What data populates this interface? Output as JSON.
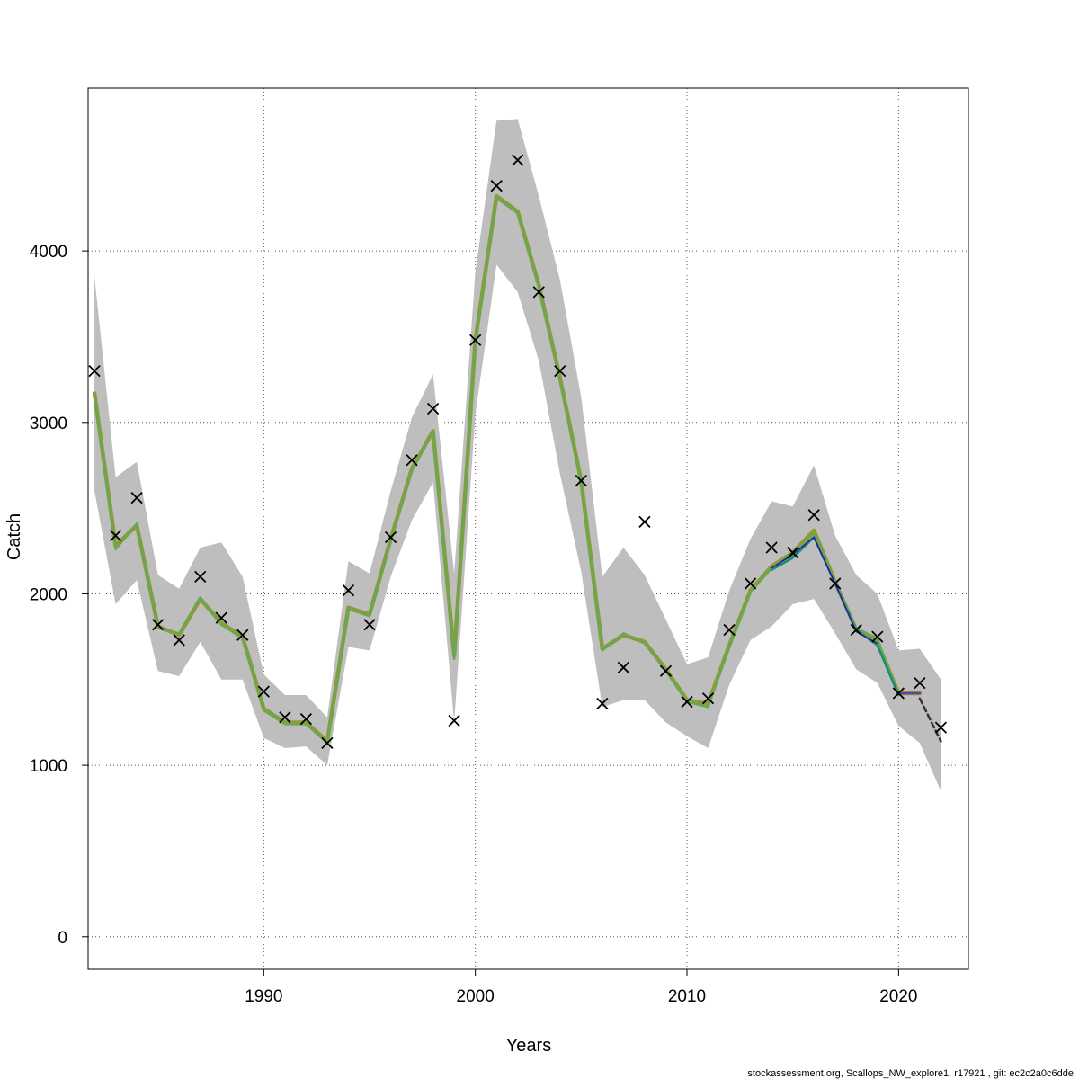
{
  "chart_data": {
    "type": "line",
    "xlabel": "Years",
    "ylabel": "Catch",
    "xlim": [
      1981.7,
      2023.3
    ],
    "ylim": [
      -190,
      4950
    ],
    "x_ticks": [
      1990,
      2000,
      2010,
      2020
    ],
    "y_ticks": [
      0,
      1000,
      2000,
      3000,
      4000
    ],
    "grid": true,
    "footer": "stockassessment.org, Scallops_NW_explore1, r17921 , git: ec2c2a0c6dde",
    "colors": {
      "band": "#bebebe",
      "observed": "#000000",
      "fit_green": "#6aa84f",
      "fit_olive": "#8e9a3a",
      "retro_teal": "#1a8a7a",
      "retro_lightblue": "#6fb7e8",
      "retro_navy": "#1f1f8a",
      "retro_purple": "#6a3d9a",
      "forecast": "#333333"
    },
    "years": [
      1982,
      1983,
      1984,
      1985,
      1986,
      1987,
      1988,
      1989,
      1990,
      1991,
      1992,
      1993,
      1994,
      1995,
      1996,
      1997,
      1998,
      1999,
      2000,
      2001,
      2002,
      2003,
      2004,
      2005,
      2006,
      2007,
      2008,
      2009,
      2010,
      2011,
      2012,
      2013,
      2014,
      2015,
      2016,
      2017,
      2018,
      2019,
      2020,
      2021,
      2022
    ],
    "observed": [
      3300,
      2340,
      2560,
      1820,
      1730,
      2100,
      1860,
      1760,
      1430,
      1280,
      1270,
      1130,
      2020,
      1820,
      2330,
      2780,
      3080,
      1260,
      3480,
      4380,
      4530,
      3760,
      3300,
      2660,
      1360,
      1570,
      2420,
      1550,
      1370,
      1390,
      1790,
      2060,
      2270,
      2240,
      2460,
      2060,
      1790,
      1750,
      1420,
      1480,
      1220
    ],
    "band_upper": [
      3850,
      2680,
      2770,
      2110,
      2030,
      2270,
      2300,
      2100,
      1530,
      1410,
      1410,
      1280,
      2190,
      2120,
      2600,
      3030,
      3280,
      2120,
      3880,
      4760,
      4770,
      4320,
      3830,
      3150,
      2100,
      2270,
      2110,
      1850,
      1590,
      1630,
      2020,
      2320,
      2540,
      2510,
      2750,
      2340,
      2110,
      2000,
      1670,
      1680,
      1500
    ],
    "band_lower": [
      2600,
      1940,
      2080,
      1550,
      1520,
      1720,
      1500,
      1500,
      1160,
      1100,
      1110,
      1000,
      1690,
      1670,
      2100,
      2430,
      2650,
      1250,
      3050,
      3920,
      3760,
      3360,
      2700,
      2130,
      1340,
      1380,
      1380,
      1250,
      1170,
      1100,
      1470,
      1730,
      1810,
      1940,
      1970,
      1770,
      1560,
      1480,
      1230,
      1130,
      850
    ],
    "series": [
      {
        "values": [
          3170,
          2280,
          2400,
          1810,
          1760,
          1970,
          1830,
          1750,
          1330,
          1250,
          1250,
          1140,
          1920,
          1880,
          2320,
          2730,
          2950,
          1640,
          3480,
          4320,
          4230,
          3800,
          3260,
          2660,
          1680,
          1760,
          1720,
          1560,
          1380,
          1360,
          1700,
          2020,
          2160,
          2240,
          2370,
          2070,
          1790,
          1720,
          1420,
          1420,
          null
        ]
      },
      {
        "values": [
          3150,
          2260,
          2410,
          1800,
          1770,
          1980,
          1820,
          1740,
          1320,
          1240,
          1240,
          1130,
          1910,
          1870,
          2310,
          2720,
          2940,
          1620,
          3470,
          4310,
          4220,
          3790,
          3250,
          2650,
          1670,
          1770,
          1710,
          1550,
          1370,
          1340,
          1690,
          2010,
          2150,
          2220,
          2350,
          2060,
          1800,
          1740,
          1410,
          null,
          null
        ]
      },
      {
        "values": [
          null,
          null,
          null,
          null,
          null,
          null,
          null,
          null,
          null,
          null,
          null,
          null,
          null,
          null,
          null,
          null,
          null,
          null,
          null,
          null,
          null,
          null,
          null,
          null,
          null,
          null,
          null,
          null,
          null,
          null,
          null,
          null,
          2140,
          2210,
          2330,
          2060,
          1790,
          1700,
          1410,
          null,
          null
        ]
      },
      {
        "values": [
          null,
          null,
          null,
          null,
          null,
          null,
          null,
          null,
          null,
          null,
          null,
          null,
          null,
          null,
          null,
          null,
          null,
          null,
          null,
          null,
          null,
          null,
          null,
          null,
          null,
          null,
          null,
          null,
          null,
          null,
          null,
          null,
          2150,
          2230,
          2330,
          2060,
          1780,
          1710,
          null,
          null,
          null
        ]
      },
      {
        "values": [
          null,
          null,
          null,
          null,
          null,
          null,
          null,
          null,
          null,
          null,
          null,
          null,
          null,
          null,
          null,
          null,
          null,
          null,
          null,
          null,
          null,
          null,
          null,
          null,
          null,
          null,
          null,
          null,
          null,
          null,
          null,
          null,
          null,
          null,
          null,
          null,
          null,
          null,
          1420,
          1420,
          null
        ]
      },
      {
        "values": [
          null,
          null,
          null,
          null,
          null,
          null,
          null,
          null,
          null,
          null,
          null,
          null,
          null,
          null,
          null,
          null,
          null,
          null,
          null,
          null,
          null,
          null,
          null,
          null,
          null,
          null,
          null,
          null,
          null,
          null,
          null,
          null,
          null,
          null,
          null,
          null,
          null,
          null,
          null,
          1390,
          1140
        ]
      }
    ]
  }
}
